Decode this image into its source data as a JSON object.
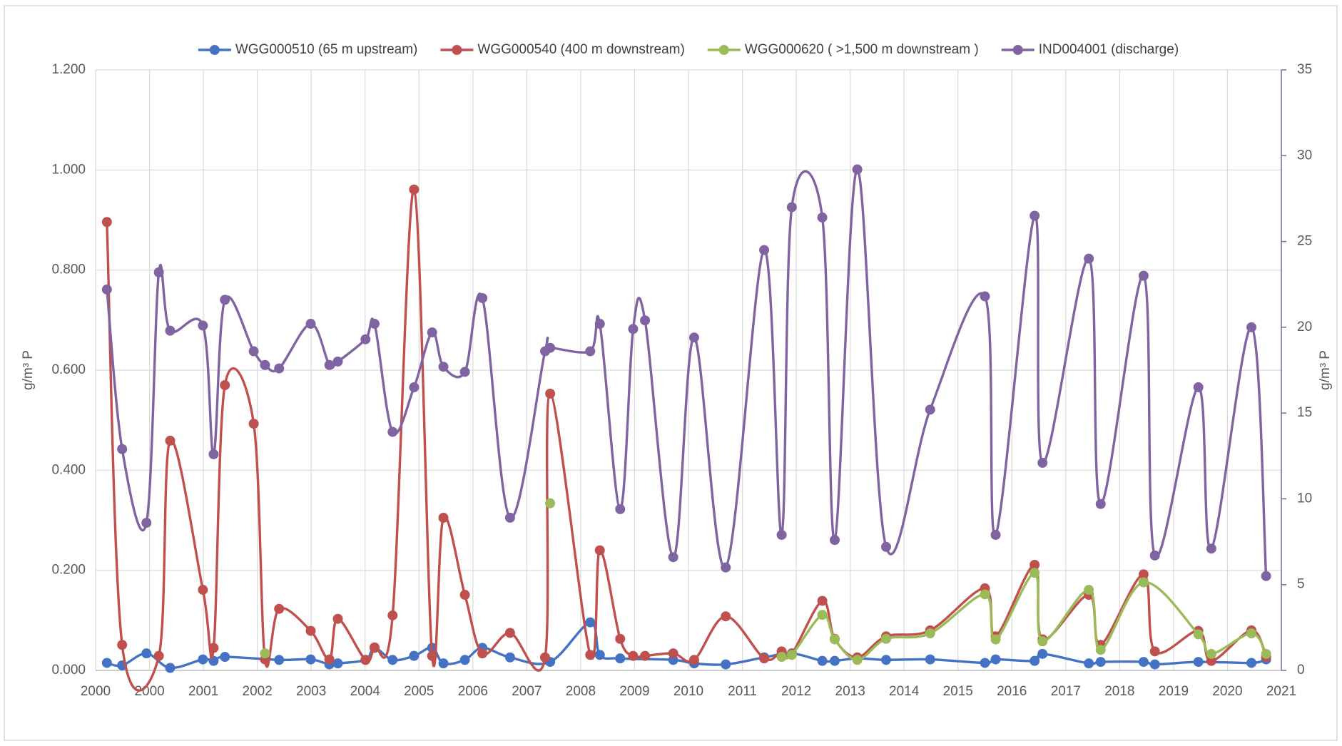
{
  "chart_data": {
    "type": "line",
    "y_label": "g/m³ P",
    "y2_label": "g/m³ P",
    "xlim": [
      2000,
      2021
    ],
    "xticks": [
      2000,
      {
        "value": 2000.955,
        "label": "2000"
      },
      {
        "value": 2001.909,
        "label": "2001"
      },
      {
        "value": 2002.864,
        "label": "2002"
      },
      {
        "value": 2003.818,
        "label": "2003"
      },
      {
        "value": 2004.773,
        "label": "2004"
      },
      {
        "value": 2005.727,
        "label": "2005"
      },
      {
        "value": 2006.682,
        "label": "2006"
      },
      {
        "value": 2007.636,
        "label": "2007"
      },
      {
        "value": 2008.591,
        "label": "2008"
      },
      {
        "value": 2009.545,
        "label": "2009"
      },
      {
        "value": 2010.5,
        "label": "2010"
      },
      {
        "value": 2011.455,
        "label": "2011"
      },
      {
        "value": 2012.409,
        "label": "2012"
      },
      {
        "value": 2013.364,
        "label": "2013"
      },
      {
        "value": 2014.318,
        "label": "2014"
      },
      {
        "value": 2015.273,
        "label": "2015"
      },
      {
        "value": 2016.227,
        "label": "2016"
      },
      {
        "value": 2017.182,
        "label": "2017"
      },
      {
        "value": 2018.136,
        "label": "2018"
      },
      {
        "value": 2019.091,
        "label": "2019"
      },
      {
        "value": 2020.045,
        "label": "2020"
      },
      2021
    ],
    "ylim": [
      0,
      1.2
    ],
    "yticks": [
      {
        "value": 0,
        "label": "0.000"
      },
      {
        "value": 0.2,
        "label": "0.200"
      },
      {
        "value": 0.4,
        "label": "0.400"
      },
      {
        "value": 0.6,
        "label": "0.600"
      },
      {
        "value": 0.8,
        "label": "0.800"
      },
      {
        "value": 1.0,
        "label": "1.000"
      },
      {
        "value": 1.2,
        "label": "1.200"
      }
    ],
    "y2lim": [
      0,
      35
    ],
    "y2ticks": [
      0,
      5,
      10,
      15,
      20,
      25,
      30,
      35
    ],
    "grid": true,
    "legend": "top",
    "series": [
      {
        "name": "WGG000510 (65 m upstream)",
        "color": "#4472c4",
        "x": [
          2000.2,
          2000.47,
          2000.9,
          2001.32,
          2001.9,
          2002.09,
          2002.29,
          2003.25,
          2003.81,
          2004.14,
          2004.29,
          2004.78,
          2004.94,
          2005.26,
          2005.64,
          2005.96,
          2006.16,
          2006.54,
          2006.85,
          2007.34,
          2008.05,
          2008.76,
          2008.93,
          2009.29,
          2010.23,
          2010.6,
          2011.16,
          2011.84,
          2012.33,
          2012.87,
          2013.09,
          2013.49,
          2014.0,
          2014.78,
          2015.75,
          2015.94,
          2016.63,
          2016.77,
          2017.59,
          2017.8,
          2018.56,
          2018.76,
          2019.53,
          2020.47,
          2020.73
        ],
        "values": [
          0.015,
          0.01,
          0.034,
          0.005,
          0.022,
          0.019,
          0.027,
          0.021,
          0.022,
          0.012,
          0.014,
          0.021,
          0.045,
          0.021,
          0.029,
          0.045,
          0.014,
          0.021,
          0.045,
          0.026,
          0.017,
          0.096,
          0.031,
          0.024,
          0.021,
          0.014,
          0.012,
          0.026,
          0.034,
          0.019,
          0.019,
          0.024,
          0.021,
          0.022,
          0.015,
          0.022,
          0.019,
          0.033,
          0.014,
          0.017,
          0.017,
          0.012,
          0.017,
          0.015,
          0.022
        ]
      },
      {
        "name": "WGG000540 (400 m downstream)",
        "color": "#c0504d",
        "x": [
          2000.2,
          2000.47,
          2001.12,
          2001.32,
          2001.9,
          2002.09,
          2002.29,
          2002.8,
          2003.0,
          2003.25,
          2003.81,
          2004.14,
          2004.29,
          2004.78,
          2004.94,
          2005.26,
          2005.64,
          2005.96,
          2006.16,
          2006.54,
          2006.85,
          2007.34,
          2007.96,
          2008.05,
          2008.76,
          2008.93,
          2009.29,
          2009.52,
          2009.73,
          2010.23,
          2010.6,
          2011.16,
          2011.84,
          2012.15,
          2012.33,
          2012.87,
          2013.09,
          2013.49,
          2014.0,
          2014.78,
          2015.75,
          2015.94,
          2016.63,
          2016.77,
          2017.59,
          2017.8,
          2018.56,
          2018.76,
          2019.53,
          2019.76,
          2020.47,
          2020.73
        ],
        "values": [
          0.896,
          0.051,
          0.029,
          0.459,
          0.161,
          0.045,
          0.57,
          0.493,
          0.022,
          0.123,
          0.079,
          0.022,
          0.103,
          0.021,
          0.046,
          0.11,
          0.961,
          0.029,
          0.305,
          0.151,
          0.034,
          0.075,
          0.026,
          0.553,
          0.031,
          0.24,
          0.063,
          0.029,
          0.029,
          0.034,
          0.021,
          0.108,
          0.024,
          0.038,
          0.033,
          0.139,
          0.063,
          0.026,
          0.068,
          0.08,
          0.164,
          0.068,
          0.211,
          0.062,
          0.151,
          0.051,
          0.192,
          0.038,
          0.079,
          0.019,
          0.08,
          0.027
        ]
      },
      {
        "name": "WGG000620 ( >1,500 m downstream )",
        "color": "#9bbb59",
        "x": [
          2003.0,
          2005.0,
          2008.05,
          2010.0,
          2012.15,
          2012.33,
          2012.87,
          2013.09,
          2013.49,
          2014.0,
          2014.78,
          2015.75,
          2015.94,
          2016.63,
          2016.77,
          2017.59,
          2017.8,
          2018.56,
          2019.53,
          2019.76,
          2020.47,
          2020.73
        ],
        "values": [
          0.034,
          null,
          0.334,
          null,
          0.027,
          0.031,
          0.111,
          0.062,
          0.021,
          0.063,
          0.074,
          0.152,
          0.062,
          0.195,
          0.058,
          0.161,
          0.041,
          0.176,
          0.072,
          0.033,
          0.074,
          0.033
        ]
      },
      {
        "name": "IND004001 (discharge)",
        "color": "#8064a2",
        "axis": "y2",
        "x": [
          2000.2,
          2000.47,
          2000.9,
          2001.12,
          2001.32,
          2001.9,
          2002.09,
          2002.29,
          2002.8,
          2003.0,
          2003.25,
          2003.81,
          2004.14,
          2004.29,
          2004.78,
          2004.94,
          2005.26,
          2005.64,
          2005.96,
          2006.16,
          2006.54,
          2006.85,
          2007.34,
          2007.96,
          2008.05,
          2008.76,
          2008.93,
          2009.29,
          2009.52,
          2009.73,
          2010.23,
          2010.6,
          2011.16,
          2011.84,
          2012.15,
          2012.33,
          2012.87,
          2013.09,
          2013.49,
          2014.0,
          2014.78,
          2015.75,
          2015.94,
          2016.63,
          2016.77,
          2017.59,
          2017.8,
          2018.56,
          2018.76,
          2019.53,
          2019.76,
          2020.47,
          2020.73
        ],
        "values": [
          22.2,
          12.9,
          8.6,
          23.2,
          19.8,
          20.1,
          12.6,
          21.6,
          18.6,
          17.8,
          17.6,
          20.2,
          17.8,
          18.0,
          19.3,
          20.2,
          13.9,
          16.5,
          19.7,
          17.7,
          17.4,
          21.7,
          8.9,
          18.6,
          18.8,
          18.6,
          20.2,
          9.4,
          19.9,
          20.4,
          6.6,
          19.4,
          6.0,
          24.5,
          7.9,
          27.0,
          26.4,
          7.6,
          29.2,
          7.2,
          15.2,
          21.8,
          7.9,
          26.5,
          12.1,
          24.0,
          9.7,
          23.0,
          6.7,
          16.5,
          7.1,
          20.0,
          5.5
        ]
      }
    ]
  }
}
